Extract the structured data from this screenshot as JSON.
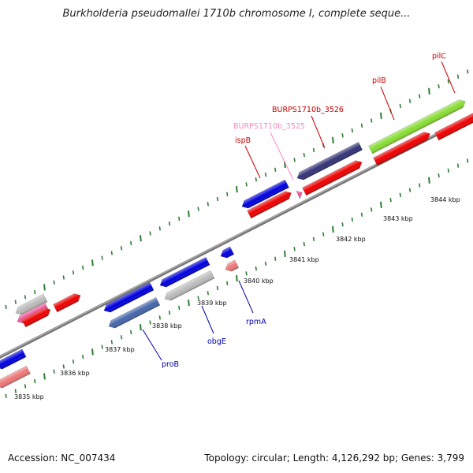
{
  "title": "Burkholderia pseudomallei 1710b chromosome I, complete seque...",
  "footer": {
    "accession": "Accession: NC_007434",
    "stats": "Topology: circular; Length: 4,126,292 bp; Genes: 3,799"
  },
  "kbp_labels": [
    "3835 kbp",
    "3836 kbp",
    "3837 kbp",
    "3838 kbp",
    "3839 kbp",
    "3840 kbp",
    "3841 kbp",
    "3842 kbp",
    "3843 kbp",
    "3844 kbp"
  ],
  "gene_labels": [
    {
      "id": "pilC",
      "text": "pilC",
      "color": "#cc0000"
    },
    {
      "id": "pilB",
      "text": "pilB",
      "color": "#cc0000"
    },
    {
      "id": "BURPS1710b_3526",
      "text": "BURPS1710b_3526",
      "color": "#cc0000"
    },
    {
      "id": "BURPS1710b_3525",
      "text": "BURPS1710b_3525",
      "color": "#ff88bb"
    },
    {
      "id": "ispB",
      "text": "ispB",
      "color": "#cc0000"
    },
    {
      "id": "proB",
      "text": "proB",
      "color": "#0000aa"
    },
    {
      "id": "obgE",
      "text": "obgE",
      "color": "#0000aa"
    },
    {
      "id": "rpmA",
      "text": "rpmA",
      "color": "#0000aa"
    }
  ],
  "colors": {
    "backbone": "#777777",
    "tick": "#2e7d32",
    "cds_red": "#ee0000",
    "cds_blue": "#0000dd",
    "cds_pink": "#ee5599",
    "cds_lightred": "#ee7777",
    "cds_gray": "#bbbbbb",
    "cds_slate": "#4466aa",
    "cds_purple": "#333377",
    "cds_lime": "#88dd33"
  }
}
